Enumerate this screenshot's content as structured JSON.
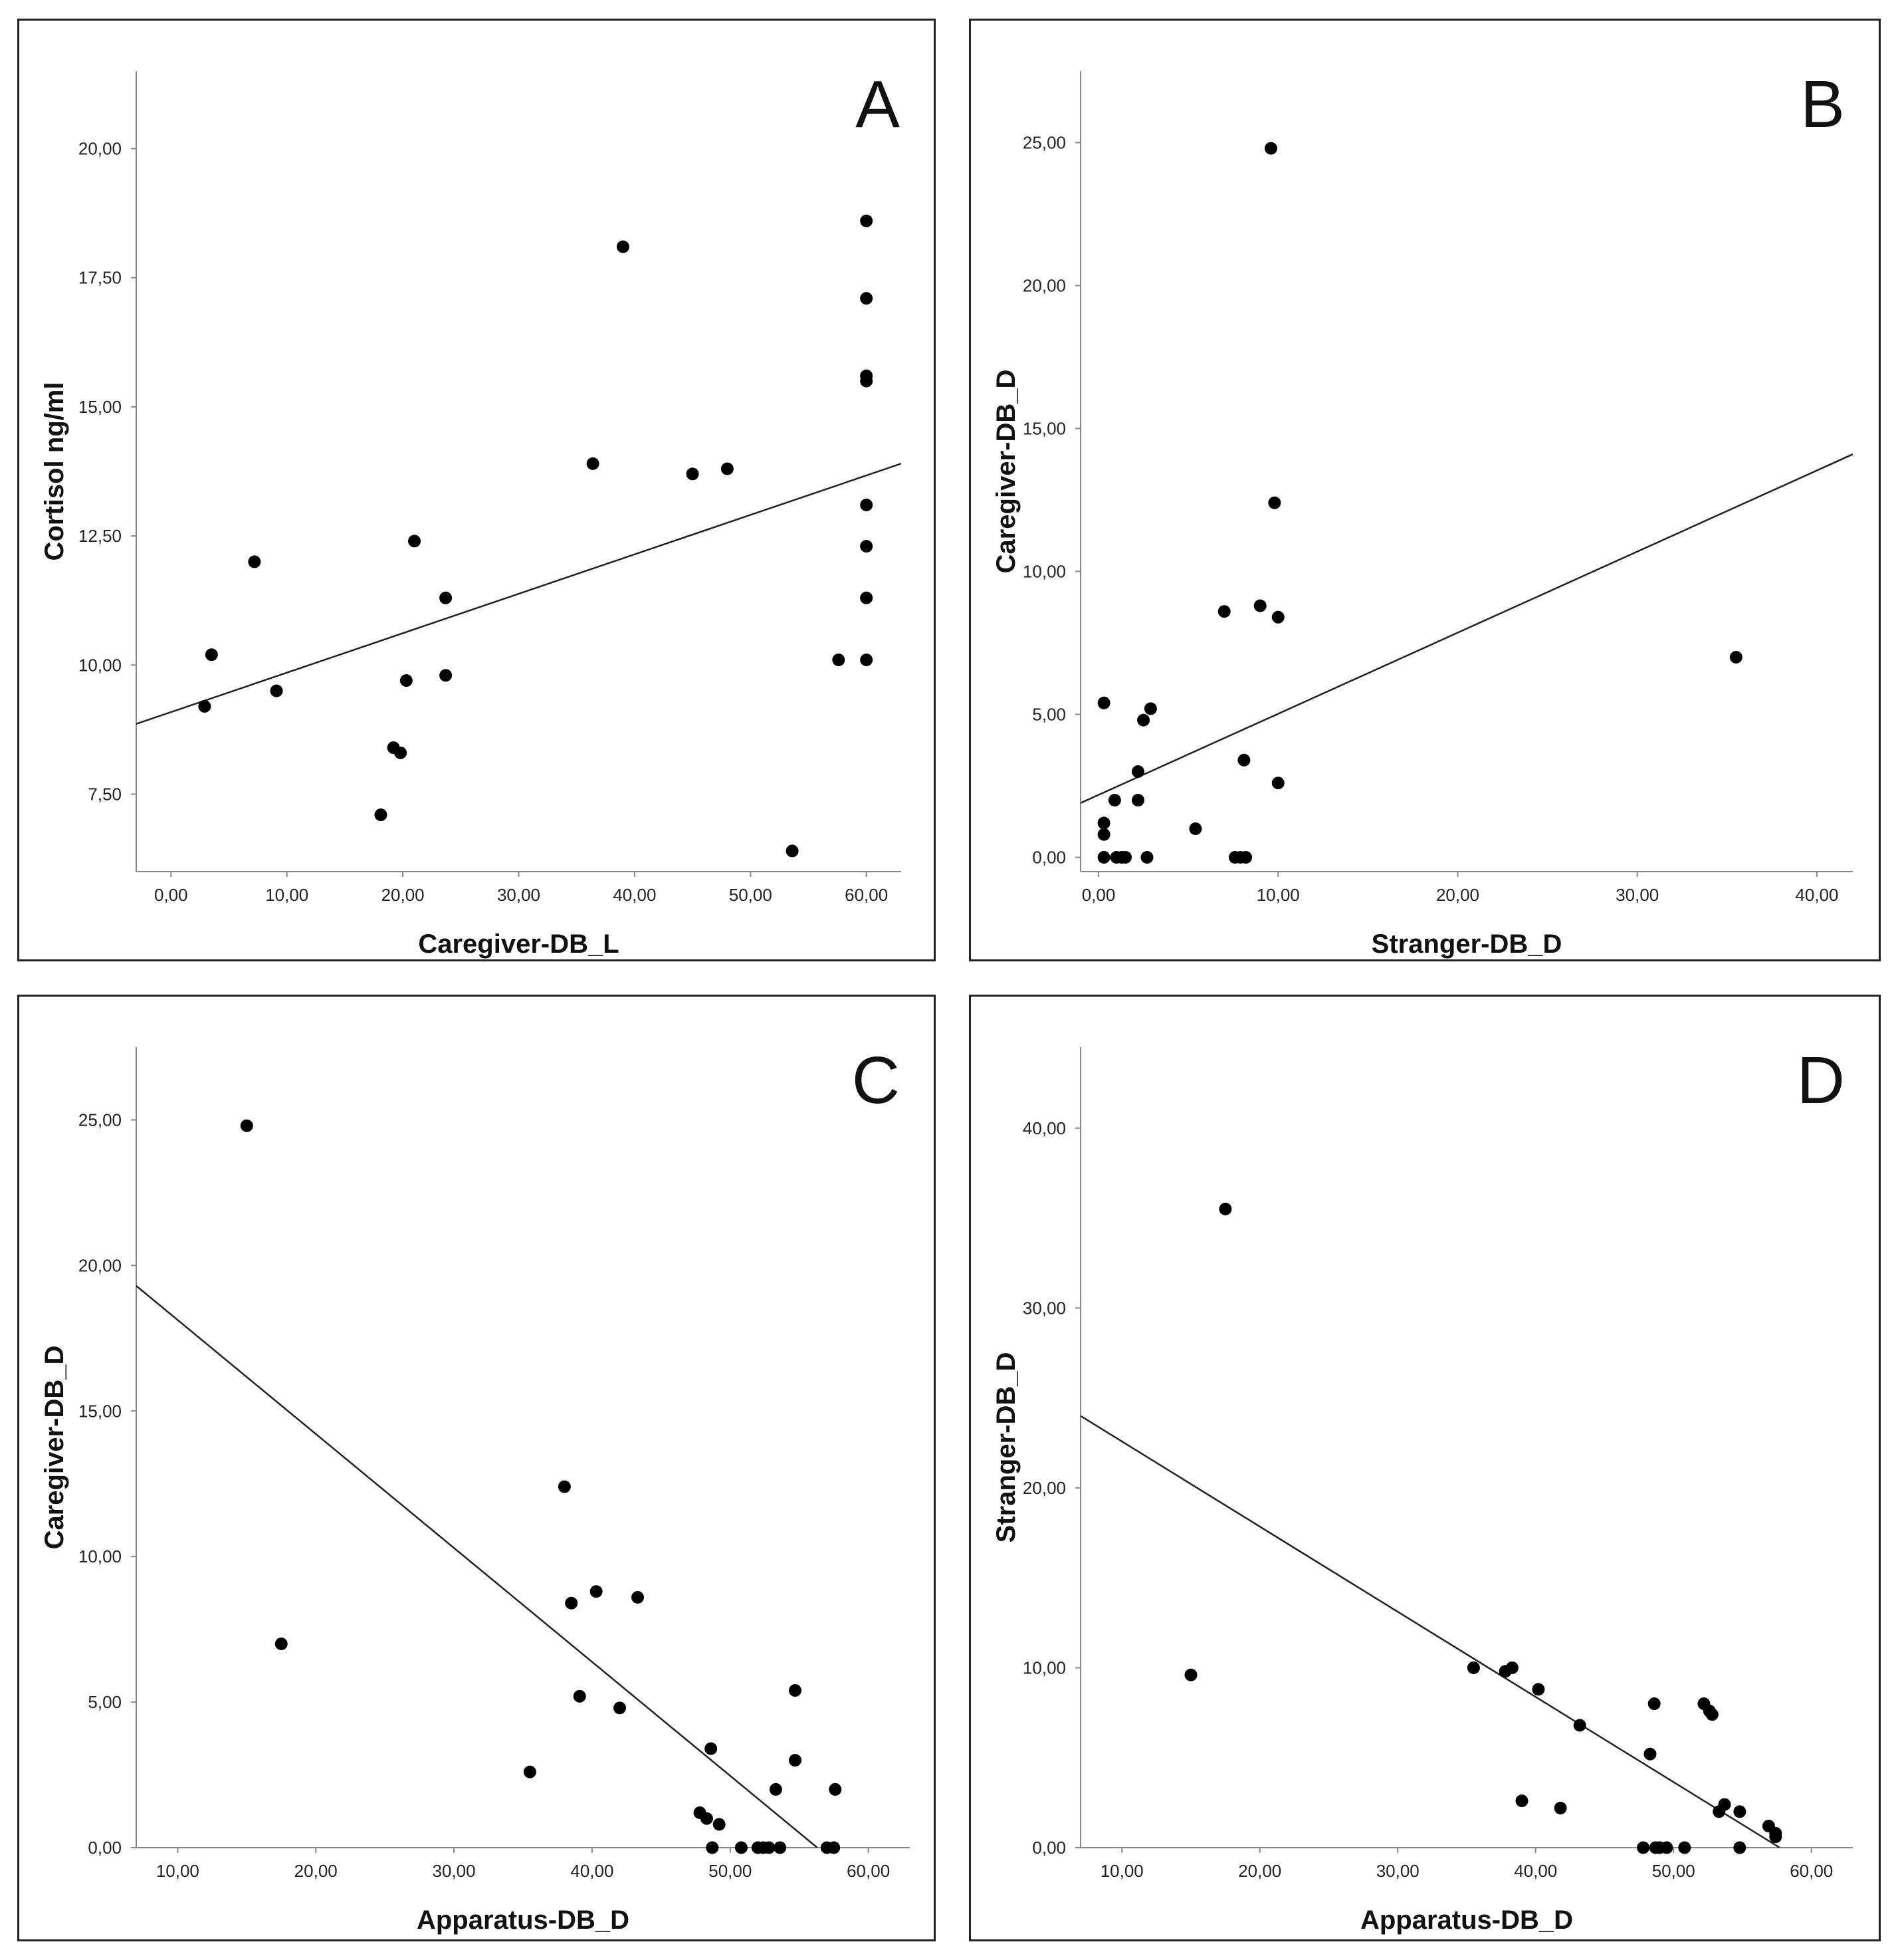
{
  "chart_data": [
    {
      "id": "A",
      "type": "scatter",
      "panel_label": "A",
      "xlabel": "Caregiver-DB_L",
      "ylabel": "Cortisol ng/ml",
      "xlim": [
        -3,
        63
      ],
      "ylim": [
        6,
        21.5
      ],
      "xticks": [
        0,
        10,
        20,
        30,
        40,
        50,
        60
      ],
      "xtick_labels": [
        "0,00",
        "10,00",
        "20,00",
        "30,00",
        "40,00",
        "50,00",
        "60,00"
      ],
      "yticks": [
        7.5,
        10,
        12.5,
        15,
        17.5,
        20
      ],
      "ytick_labels": [
        "7,50",
        "10,00",
        "12,50",
        "15,00",
        "17,50",
        "20,00"
      ],
      "points": [
        [
          2.9,
          9.2
        ],
        [
          3.5,
          10.2
        ],
        [
          7.2,
          12.0
        ],
        [
          9.1,
          9.5
        ],
        [
          18.1,
          7.1
        ],
        [
          19.2,
          8.4
        ],
        [
          19.8,
          8.3
        ],
        [
          20.3,
          9.7
        ],
        [
          21.0,
          12.4
        ],
        [
          23.7,
          11.3
        ],
        [
          23.7,
          9.8
        ],
        [
          36.4,
          13.9
        ],
        [
          39.0,
          18.1
        ],
        [
          45.0,
          13.7
        ],
        [
          48.0,
          13.8
        ],
        [
          53.6,
          6.4
        ],
        [
          57.6,
          10.1
        ],
        [
          60.0,
          18.6
        ],
        [
          60.0,
          17.1
        ],
        [
          60.0,
          15.6
        ],
        [
          60.0,
          15.5
        ],
        [
          60.0,
          13.1
        ],
        [
          60.0,
          12.3
        ],
        [
          60.0,
          11.3
        ],
        [
          60.0,
          10.1
        ]
      ],
      "fit_line": [
        [
          -3,
          8.86
        ],
        [
          63,
          13.9
        ]
      ]
    },
    {
      "id": "B",
      "type": "scatter",
      "panel_label": "B",
      "xlabel": "Stranger-DB_D",
      "ylabel": "Caregiver-DB_D",
      "xlim": [
        -1,
        42
      ],
      "ylim": [
        -0.5,
        27.5
      ],
      "xticks": [
        0,
        10,
        20,
        30,
        40
      ],
      "xtick_labels": [
        "0,00",
        "10,00",
        "20,00",
        "30,00",
        "40,00"
      ],
      "yticks": [
        0,
        5,
        10,
        15,
        20,
        25
      ],
      "ytick_labels": [
        "0,00",
        "5,00",
        "10,00",
        "15,00",
        "20,00",
        "25,00"
      ],
      "points": [
        [
          0.3,
          5.4
        ],
        [
          0.3,
          1.2
        ],
        [
          0.3,
          0.8
        ],
        [
          0.3,
          0.0
        ],
        [
          0.9,
          2.0
        ],
        [
          1.0,
          0.0
        ],
        [
          1.3,
          0.0
        ],
        [
          1.5,
          0.0
        ],
        [
          2.2,
          3.0
        ],
        [
          2.2,
          2.0
        ],
        [
          2.5,
          4.8
        ],
        [
          2.7,
          0.0
        ],
        [
          2.9,
          5.2
        ],
        [
          5.4,
          1.0
        ],
        [
          7.0,
          8.6
        ],
        [
          7.6,
          0.0
        ],
        [
          7.9,
          0.0
        ],
        [
          8.1,
          3.4
        ],
        [
          8.2,
          0.0
        ],
        [
          9.0,
          8.8
        ],
        [
          9.6,
          24.8
        ],
        [
          9.8,
          12.4
        ],
        [
          10.0,
          8.4
        ],
        [
          10.0,
          2.6
        ],
        [
          35.5,
          7.0
        ]
      ],
      "fit_line": [
        [
          -1,
          1.9
        ],
        [
          42,
          14.1
        ]
      ]
    },
    {
      "id": "C",
      "type": "scatter",
      "panel_label": "C",
      "xlabel": "Apparatus-DB_D",
      "ylabel": "Caregiver-DB_D",
      "xlim": [
        7,
        63
      ],
      "ylim": [
        0,
        27.5
      ],
      "xticks": [
        10,
        20,
        30,
        40,
        50,
        60
      ],
      "xtick_labels": [
        "10,00",
        "20,00",
        "30,00",
        "40,00",
        "50,00",
        "60,00"
      ],
      "yticks": [
        0,
        5,
        10,
        15,
        20,
        25
      ],
      "ytick_labels": [
        "0,00",
        "5,00",
        "10,00",
        "15,00",
        "20,00",
        "25,00"
      ],
      "points": [
        [
          15.0,
          24.8
        ],
        [
          17.5,
          7.0
        ],
        [
          35.5,
          2.6
        ],
        [
          38.0,
          12.4
        ],
        [
          38.5,
          8.4
        ],
        [
          39.1,
          5.2
        ],
        [
          40.3,
          8.8
        ],
        [
          42.0,
          4.8
        ],
        [
          43.3,
          8.6
        ],
        [
          47.8,
          1.2
        ],
        [
          48.3,
          1.0
        ],
        [
          48.6,
          3.4
        ],
        [
          48.7,
          0.0
        ],
        [
          49.2,
          0.8
        ],
        [
          50.8,
          0.0
        ],
        [
          52.0,
          0.0
        ],
        [
          52.4,
          0.0
        ],
        [
          52.8,
          0.0
        ],
        [
          53.3,
          2.0
        ],
        [
          53.6,
          0.0
        ],
        [
          54.7,
          5.4
        ],
        [
          54.7,
          3.0
        ],
        [
          57.0,
          0.0
        ],
        [
          57.5,
          0.0
        ],
        [
          57.6,
          2.0
        ]
      ],
      "fit_line": [
        [
          7,
          19.3
        ],
        [
          56.3,
          0.0
        ]
      ]
    },
    {
      "id": "D",
      "type": "scatter",
      "panel_label": "D",
      "xlabel": "Apparatus-DB_D",
      "ylabel": "Stranger-DB_D",
      "xlim": [
        7,
        63
      ],
      "ylim": [
        0,
        44.5
      ],
      "xticks": [
        10,
        20,
        30,
        40,
        50,
        60
      ],
      "xtick_labels": [
        "10,00",
        "20,00",
        "30,00",
        "40,00",
        "50,00",
        "60,00"
      ],
      "yticks": [
        0,
        10,
        20,
        30,
        40
      ],
      "ytick_labels": [
        "0,00",
        "10,00",
        "20,00",
        "30,00",
        "40,00"
      ],
      "points": [
        [
          15.0,
          9.6
        ],
        [
          17.5,
          35.5
        ],
        [
          35.5,
          10.0
        ],
        [
          37.8,
          9.8
        ],
        [
          38.3,
          10.0
        ],
        [
          39.0,
          2.6
        ],
        [
          40.2,
          8.8
        ],
        [
          41.8,
          2.2
        ],
        [
          43.2,
          6.8
        ],
        [
          47.8,
          0.0
        ],
        [
          48.3,
          5.2
        ],
        [
          48.6,
          8.0
        ],
        [
          48.7,
          0.0
        ],
        [
          49.0,
          0.0
        ],
        [
          49.5,
          0.0
        ],
        [
          50.8,
          0.0
        ],
        [
          52.2,
          8.0
        ],
        [
          52.6,
          7.6
        ],
        [
          52.8,
          7.4
        ],
        [
          53.3,
          2.0
        ],
        [
          53.7,
          2.4
        ],
        [
          54.8,
          2.0
        ],
        [
          54.8,
          0.0
        ],
        [
          56.9,
          1.2
        ],
        [
          57.4,
          0.8
        ],
        [
          57.4,
          0.6
        ]
      ],
      "fit_line": [
        [
          7,
          24.0
        ],
        [
          57.7,
          0.0
        ]
      ]
    }
  ]
}
